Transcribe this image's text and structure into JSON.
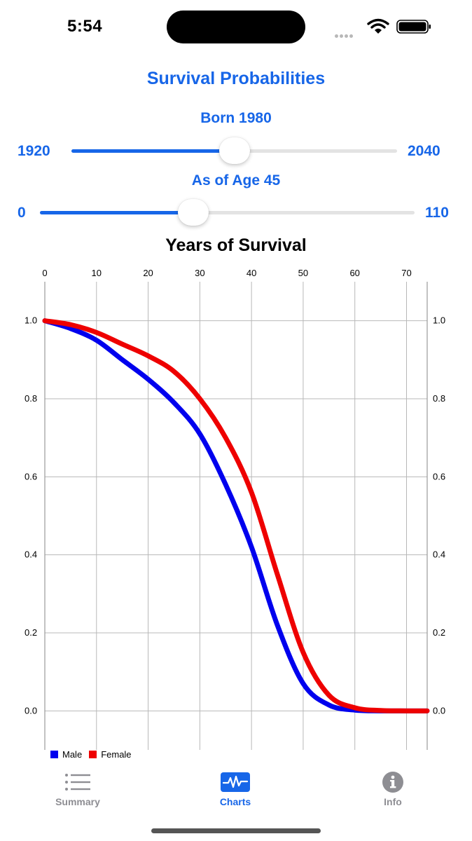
{
  "status": {
    "time": "5:54"
  },
  "title": "Survival Probabilities",
  "born_slider": {
    "label": "Born 1980",
    "min_label": "1920",
    "max_label": "2040",
    "value_fraction": 0.5
  },
  "age_slider": {
    "label": "As of Age 45",
    "min_label": "0",
    "max_label": "110",
    "value_fraction": 0.409
  },
  "chart_title": "Years of Survival",
  "chart_data": {
    "type": "line",
    "title": "Years of Survival",
    "x_range": [
      0,
      74
    ],
    "y_range": [
      -0.1,
      1.1
    ],
    "x_ticks": [
      0,
      10,
      20,
      30,
      40,
      50,
      60,
      70
    ],
    "y_ticks": [
      0.0,
      0.2,
      0.4,
      0.6,
      0.8,
      1.0
    ],
    "x_tick_labels": [
      "0",
      "10",
      "20",
      "30",
      "40",
      "50",
      "60",
      "70"
    ],
    "y_tick_labels": [
      "0.0",
      "0.2",
      "0.4",
      "0.6",
      "0.8",
      "1.0"
    ],
    "grid": true,
    "legend_position": "bottom-left",
    "series": [
      {
        "name": "Male",
        "color": "#0000ee",
        "x": [
          0,
          5,
          10,
          15,
          20,
          25,
          30,
          35,
          40,
          45,
          50,
          55,
          60,
          65,
          70,
          74
        ],
        "y": [
          1.0,
          0.98,
          0.95,
          0.9,
          0.85,
          0.79,
          0.71,
          0.58,
          0.42,
          0.22,
          0.07,
          0.015,
          0.002,
          0,
          0,
          0
        ]
      },
      {
        "name": "Female",
        "color": "#ee0000",
        "x": [
          0,
          5,
          10,
          15,
          20,
          25,
          30,
          35,
          40,
          45,
          50,
          55,
          60,
          65,
          70,
          74
        ],
        "y": [
          1.0,
          0.99,
          0.97,
          0.94,
          0.91,
          0.87,
          0.8,
          0.7,
          0.56,
          0.35,
          0.15,
          0.04,
          0.008,
          0.001,
          0,
          0
        ]
      }
    ]
  },
  "tabs": [
    {
      "label": "Summary",
      "icon": "list-icon"
    },
    {
      "label": "Charts",
      "icon": "waveform-icon"
    },
    {
      "label": "Info",
      "icon": "info-icon"
    }
  ]
}
